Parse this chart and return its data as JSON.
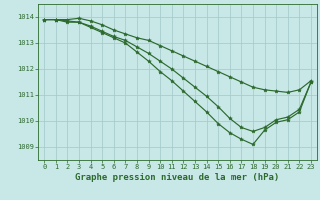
{
  "series": [
    {
      "x": [
        0,
        1,
        2,
        3,
        4,
        5,
        6,
        7,
        8,
        9,
        10,
        11,
        12,
        13,
        14,
        15,
        16,
        17,
        18,
        19,
        20,
        21,
        22,
        23
      ],
      "y": [
        1013.9,
        1013.9,
        1013.9,
        1013.95,
        1013.85,
        1013.7,
        1013.5,
        1013.35,
        1013.2,
        1013.1,
        1012.9,
        1012.7,
        1012.5,
        1012.3,
        1012.1,
        1011.9,
        1011.7,
        1011.5,
        1011.3,
        1011.2,
        1011.15,
        1011.1,
        1011.2,
        1011.55
      ]
    },
    {
      "x": [
        0,
        1,
        2,
        3,
        4,
        5,
        6,
        7,
        8,
        9,
        10,
        11,
        12,
        13,
        14,
        15,
        16,
        17,
        18,
        19,
        20,
        21,
        22,
        23
      ],
      "y": [
        1013.9,
        1013.9,
        1013.85,
        1013.8,
        1013.65,
        1013.45,
        1013.25,
        1013.1,
        1012.85,
        1012.6,
        1012.3,
        1012.0,
        1011.65,
        1011.3,
        1010.95,
        1010.55,
        1010.1,
        1009.75,
        1009.6,
        1009.75,
        1010.05,
        1010.15,
        1010.45,
        1011.5
      ]
    },
    {
      "x": [
        0,
        1,
        2,
        3,
        4,
        5,
        6,
        7,
        8,
        9,
        10,
        11,
        12,
        13,
        14,
        15,
        16,
        17,
        18,
        19,
        20,
        21,
        22,
        23
      ],
      "y": [
        1013.9,
        1013.9,
        1013.8,
        1013.8,
        1013.6,
        1013.4,
        1013.2,
        1013.0,
        1012.65,
        1012.3,
        1011.9,
        1011.55,
        1011.15,
        1010.75,
        1010.35,
        1009.9,
        1009.55,
        1009.3,
        1009.1,
        1009.65,
        1009.95,
        1010.05,
        1010.35,
        1011.5
      ]
    }
  ],
  "line_color": "#2d6a2d",
  "marker_color": "#2d6a2d",
  "bg_color": "#c8e8e8",
  "grid_color": "#a8cccc",
  "axis_color": "#2d6a2d",
  "xlabel": "Graphe pression niveau de la mer (hPa)",
  "xlabel_color": "#2d6a2d",
  "ylim": [
    1008.5,
    1014.5
  ],
  "xlim": [
    -0.5,
    23.5
  ],
  "yticks": [
    1009,
    1010,
    1011,
    1012,
    1013,
    1014
  ],
  "xticks": [
    0,
    1,
    2,
    3,
    4,
    5,
    6,
    7,
    8,
    9,
    10,
    11,
    12,
    13,
    14,
    15,
    16,
    17,
    18,
    19,
    20,
    21,
    22,
    23
  ],
  "tick_fontsize": 5.0,
  "xlabel_fontsize": 6.5,
  "marker_size": 2.8,
  "line_width": 0.85
}
